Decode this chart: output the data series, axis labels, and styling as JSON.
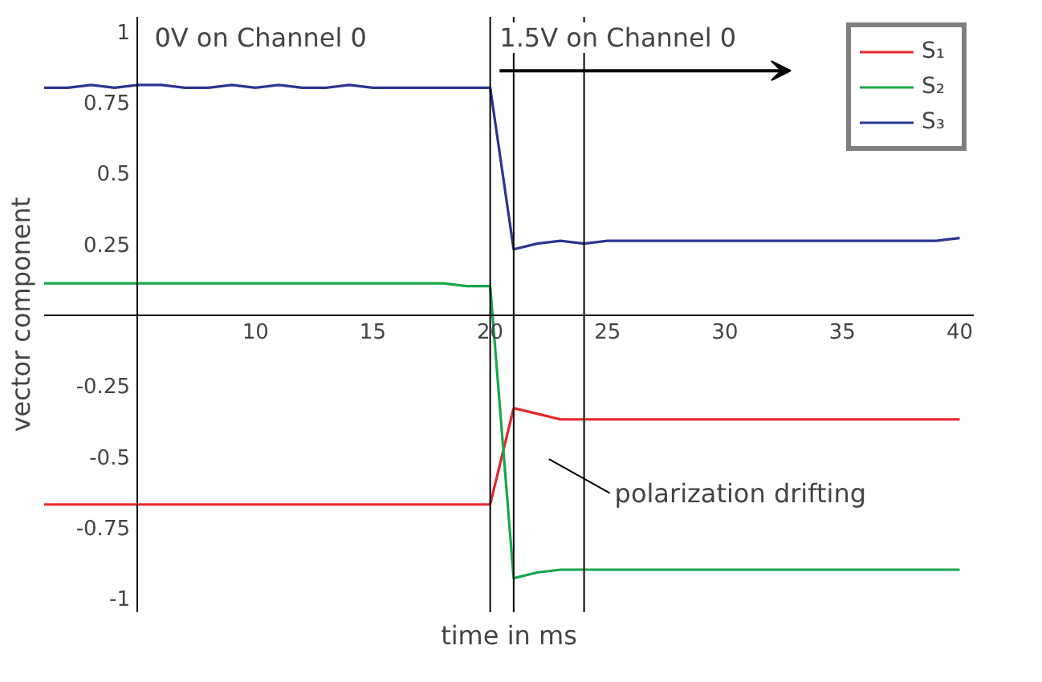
{
  "chart_data": {
    "type": "line",
    "xlabel": "time in ms",
    "ylabel": "vector component",
    "x": [
      1,
      2,
      3,
      4,
      5,
      6,
      7,
      8,
      9,
      10,
      11,
      12,
      13,
      14,
      15,
      16,
      17,
      18,
      19,
      20,
      21,
      22,
      23,
      24,
      25,
      26,
      27,
      28,
      29,
      30,
      31,
      32,
      33,
      34,
      35,
      36,
      37,
      38,
      39,
      40
    ],
    "series": [
      {
        "name": "S₁",
        "color": "#e8262a",
        "values": [
          -0.67,
          -0.67,
          -0.67,
          -0.67,
          -0.67,
          -0.67,
          -0.67,
          -0.67,
          -0.67,
          -0.67,
          -0.67,
          -0.67,
          -0.67,
          -0.67,
          -0.67,
          -0.67,
          -0.67,
          -0.67,
          -0.67,
          -0.67,
          -0.33,
          -0.35,
          -0.37,
          -0.37,
          -0.37,
          -0.37,
          -0.37,
          -0.37,
          -0.37,
          -0.37,
          -0.37,
          -0.37,
          -0.37,
          -0.37,
          -0.37,
          -0.37,
          -0.37,
          -0.37,
          -0.37,
          -0.37
        ]
      },
      {
        "name": "S₂",
        "color": "#16a84a",
        "values": [
          0.11,
          0.11,
          0.11,
          0.11,
          0.11,
          0.11,
          0.11,
          0.11,
          0.11,
          0.11,
          0.11,
          0.11,
          0.11,
          0.11,
          0.11,
          0.11,
          0.11,
          0.11,
          0.1,
          0.1,
          -0.93,
          -0.91,
          -0.9,
          -0.9,
          -0.9,
          -0.9,
          -0.9,
          -0.9,
          -0.9,
          -0.9,
          -0.9,
          -0.9,
          -0.9,
          -0.9,
          -0.9,
          -0.9,
          -0.9,
          -0.9,
          -0.9,
          -0.9
        ]
      },
      {
        "name": "S₃",
        "color": "#2b3590",
        "values": [
          0.8,
          0.8,
          0.81,
          0.8,
          0.81,
          0.81,
          0.8,
          0.8,
          0.81,
          0.8,
          0.81,
          0.8,
          0.8,
          0.81,
          0.8,
          0.8,
          0.8,
          0.8,
          0.8,
          0.8,
          0.23,
          0.25,
          0.26,
          0.25,
          0.26,
          0.26,
          0.26,
          0.26,
          0.26,
          0.26,
          0.26,
          0.26,
          0.26,
          0.26,
          0.26,
          0.26,
          0.26,
          0.26,
          0.26,
          0.27
        ]
      }
    ],
    "xlim": [
      1,
      40.6
    ],
    "ylim": [
      -1.05,
      1.05
    ],
    "xticks": [
      10,
      15,
      20,
      25,
      30,
      35,
      40
    ],
    "yticks": [
      -1,
      -0.75,
      -0.5,
      -0.25,
      0.25,
      0.5,
      0.75,
      1
    ],
    "ref_lines": [
      {
        "axis": "x",
        "value": 20,
        "color": "#000000"
      },
      {
        "axis": "x",
        "value": 21,
        "color": "#000000"
      },
      {
        "axis": "x",
        "value": 24,
        "color": "#000000"
      }
    ],
    "annotations": [
      "0V on Channel 0",
      "1.5V on Channel 0",
      "polarization drifting"
    ],
    "legend": "top right",
    "line_style": "solid",
    "marker": "none"
  }
}
